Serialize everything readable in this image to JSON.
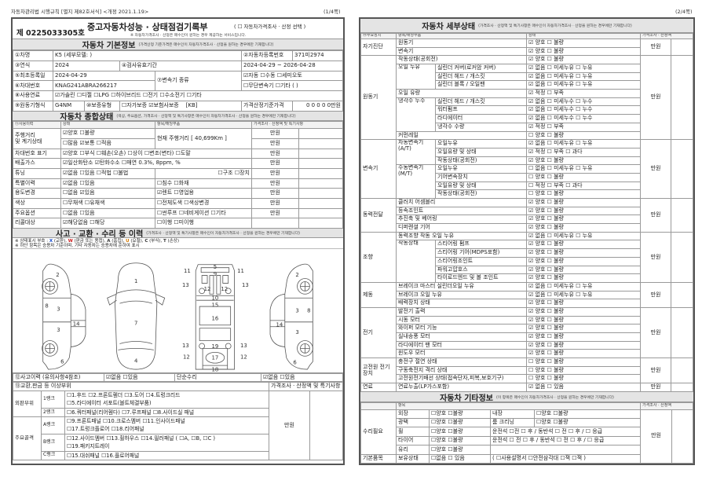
{
  "header": {
    "left": "자동차관리법 시행규칙 [별지 제82호서식] <개정 2021.1.19>",
    "page1": "(1/4쪽)",
    "page2": "(2/4쪽)"
  },
  "p1": {
    "doc_number": "제 0225033305호",
    "title": "중고자동차성능 · 상태점검기록부",
    "title_option": "( ☐ 자동차가격조사 · 산정 선택 )",
    "title_note": "※ 자동차가격조사 · 산정은 매수인이 원하는 경우 제공하는 서비스입니다.",
    "basic": {
      "heading": "자동차 기본정보",
      "note": "(가격산정 기준가격은 매수인이 자동차가격조사 · 산정을 원하는 경우에만 기재합니다)",
      "name_label": "①차명",
      "name": "K5 (세부모델: )",
      "reg_label": "②자동차등록번호",
      "reg": "371미2974",
      "year_label": "③연식",
      "year": "2024",
      "inspect_label": "④검사유효기간",
      "inspect": "2024-04-29 ~ 2026-04-28",
      "first_reg_label": "⑤최초등록일",
      "first_reg": "2024-04-29",
      "trans_label": "⑦변속기 종류",
      "trans1": "☑자동 ☐수동 ☐세미오토",
      "trans2": "☐무단변속기 ☐기타 (      )",
      "vin_label": "⑥차대번호",
      "vin": "KNAG241ABRA266217",
      "fuel_label": "⑧사용연료",
      "fuel": "☑가솔린 ☐디젤 ☐LPG ☐하이브리드 ☐전기 ☐수소전기 ☐기타",
      "engine_label": "⑨원동기형식",
      "engine": "G4NM",
      "warranty_label": "⑩보증유형",
      "warranty": "☐자가보증 ☑보험사보증",
      "warranty_co": "[KB]",
      "base_price_label": "가격산정기준가격",
      "base_price": "0 0 0 0 0만원"
    },
    "overall": {
      "heading": "자동차 종합상태",
      "note": "(색상, 주요옵션, 가격조사 · 산정액 및 특기사항은 매수인이 자동차가격조사 · 산정을 원하는 경우에만 기재합니다)",
      "columns": [
        "⑪사용이력",
        "상태",
        "항목/해당부품",
        "가격조사 · 산정액 및 특기사항"
      ],
      "mileage": {
        "label1": "주행거리",
        "label2": "및 계기상태",
        "status1": "☑양호 ☐불량",
        "status2": "☐많음 ☑보통 ☐적음",
        "parts": "현재 주행거리 [ 40,699Km ]",
        "price1": "만원",
        "price2": "만원"
      },
      "rows": [
        {
          "label": "차대번호 표기",
          "status": "☑양호 ☐부식 ☐훼손(오손) ☐상이 ☐변조(변타) ☐도말",
          "price": "만원"
        },
        {
          "label": "배출가스",
          "status": "☑일산화탄소 ☑탄화수소 ☐매연   0.3%,     8ppm,          %",
          "price": "만원"
        },
        {
          "label": "튜닝",
          "status": "☑없음 ☐있음 ☐적법 ☐불법",
          "parts": "☐구조 ☐장치",
          "price": "만원"
        },
        {
          "label": "특별이력",
          "status": "☑없음 ☐있음",
          "parts": "☐침수 ☐화재",
          "price": "만원"
        },
        {
          "label": "용도변경",
          "status": "☐없음 ☑있음",
          "parts": "☑렌트 ☐영업용",
          "price": "만원"
        },
        {
          "label": "색상",
          "status": "☐무채색 ☐유채색",
          "parts": "☐전체도색 ☐색상변경",
          "price": "만원"
        },
        {
          "label": "주요옵션",
          "status": "☐없음 ☐있음",
          "parts": "☐썬루프 ☐네비게이션 ☐기타",
          "price": "만원"
        },
        {
          "label": "리콜대상",
          "status": "☑해당없음 ☐해당",
          "parts": "☐이행 ☐미이행",
          "price": ""
        }
      ]
    },
    "accident": {
      "heading": "사고 · 교환 · 수리 등 이력",
      "note": "(가격조사 · 산정액 및 특기사항은 매수인이 자동차가격조사 · 산정을 원하는 경우에만 기재합니다)",
      "legend_prefix": "※ 상태표시 부호 : ",
      "legend": [
        {
          "sym": "X",
          "text": "(교환),",
          "color": "#1a4fd0"
        },
        {
          "sym": "W",
          "text": "(판금 또는 용접),",
          "color": "#d01a1a"
        },
        {
          "sym": "A",
          "text": "(흠집),",
          "color": "#333333"
        },
        {
          "sym": "U",
          "text": "(요철),",
          "color": "#d67a00"
        },
        {
          "sym": "C",
          "text": "(부식),",
          "color": "#333333"
        },
        {
          "sym": "T",
          "text": "(손상)",
          "color": "#333333"
        }
      ],
      "note2": "※ 하단 항목은 승용차 기준이며, 기타 자동차는 승용차에 준하여 표시",
      "diagram_labels": [
        "2",
        "8",
        "3",
        "3",
        "14",
        "6",
        "1",
        "7",
        "4",
        "5",
        "9",
        "11",
        "11",
        "13",
        "13",
        "12",
        "12",
        "10",
        "15",
        "16",
        "13",
        "19",
        "13",
        "12",
        "17",
        "12",
        "18",
        "2",
        "3",
        "8",
        "14",
        "3",
        "6"
      ],
      "history_label": "⑫사고이력 (유의사항4참조)",
      "history": "☑없음 ☐있음",
      "simple_label": "단순수리",
      "simple": "☑없음 ☐있음",
      "parts_label": "⑬교환,판금 등 이상부위",
      "price_label": "가격조사 · 산정액 및 특기사항",
      "price": "만원",
      "groups": [
        {
          "name": "외판부위",
          "ranks": [
            {
              "name": "1랭크",
              "lines": [
                "☐1.후드  ☐2.프론트휀더  ☐3.도어  ☐4.트렁크리드",
                "☐5.라디에이터 서포트(볼트체결부품)"
              ]
            },
            {
              "name": "2랭크",
              "lines": [
                "☐6.쿼터패널(리어휀다)  ☐7.루프패널  ☐8.사이드실 패널"
              ]
            }
          ]
        },
        {
          "name": "주요골격",
          "ranks": [
            {
              "name": "A랭크",
              "lines": [
                "☐9.프론트패널  ☐10.크로스멤버  ☐11.인사이드패널",
                "☐17.트렁크플로어  ☐18.리어패널"
              ]
            },
            {
              "name": "B랭크",
              "lines": [
                "☐12.사이드멤버  ☐13.휠하우스  ☐14.필러패널 ( ☐A, ☐B, ☐C )",
                "☐19.패키지트레이"
              ]
            },
            {
              "name": "C랭크",
              "lines": [
                "☐15.대쉬패널  ☐16.플로어패널"
              ]
            }
          ]
        }
      ]
    }
  },
  "p2": {
    "detail": {
      "heading": "자동차 세부상태",
      "note": "(가격조사 · 산정액 및 특기사항은 매수인이 자동차가격조사 · 산정을 원하는 경우에만 기재합니다)",
      "columns": [
        "⑭주요장치",
        "항목/해당부품",
        "상태",
        "가격조사 · 산정액"
      ],
      "price": "만원",
      "groups": [
        {
          "name": "자기진단",
          "items": [
            {
              "name": "원동기",
              "status": "☑ 양호  ☐ 불량"
            },
            {
              "name": "변속기",
              "status": "☑ 양호  ☐ 불량"
            }
          ]
        },
        {
          "name": "원동기",
          "items": [
            {
              "name": "작동상태(공회전)",
              "status": "☑ 양호  ☐ 불량"
            },
            {
              "name": "오일 누유",
              "children": [
                {
                  "name": "실린더 커버(로커암 커버)",
                  "status": "☑ 없음  ☐ 미세누유  ☐ 누유"
                },
                {
                  "name": "실린더 헤드 / 개스킷",
                  "status": "☑ 없음  ☐ 미세누유  ☐ 누유"
                },
                {
                  "name": "실린더 블록 / 오일팬",
                  "status": "☑ 없음  ☐ 미세누유  ☐ 누유"
                }
              ]
            },
            {
              "name": "오일 유량",
              "status": "☑ 적정  ☐ 부족"
            },
            {
              "name": "냉각수 누수",
              "children": [
                {
                  "name": "실린더 헤드 / 개스킷",
                  "status": "☑ 없음  ☐ 미세누수  ☐ 누수"
                },
                {
                  "name": "워터펌프",
                  "status": "☑ 없음  ☐ 미세누수  ☐ 누수"
                },
                {
                  "name": "라디에이터",
                  "status": "☑ 없음  ☐ 미세누수  ☐ 누수"
                },
                {
                  "name": "냉각수 수량",
                  "status": "☑ 적정  ☐ 부족"
                }
              ]
            },
            {
              "name": "커먼레일",
              "status": "☐ 양호  ☐ 불량"
            }
          ]
        },
        {
          "name": "변속기",
          "items": [
            {
              "name": "자동변속기 (A/T)",
              "children": [
                {
                  "name": "오일누유",
                  "status": "☑ 없음  ☐ 미세누유  ☐ 누유"
                },
                {
                  "name": "오일유량 및 상태",
                  "status": "☑ 적정  ☐ 부족  ☐ 과다"
                },
                {
                  "name": "작동상태(공회전)",
                  "status": "☑ 양호  ☐ 불량"
                }
              ]
            },
            {
              "name": "수동변속기 (M/T)",
              "children": [
                {
                  "name": "오일누유",
                  "status": "☐ 없음  ☐ 미세누유  ☐ 누유"
                },
                {
                  "name": "기어변속장치",
                  "status": "☐ 양호  ☐ 불량"
                },
                {
                  "name": "오일유량 및 상태",
                  "status": "☐ 적정  ☐ 부족  ☐ 과다"
                },
                {
                  "name": "작동상태(공회전)",
                  "status": "☐ 양호  ☐ 불량"
                }
              ]
            }
          ]
        },
        {
          "name": "동력전달",
          "items": [
            {
              "name": "클러치 어셈블리",
              "status": "☑ 양호  ☐ 불량"
            },
            {
              "name": "등속조인트",
              "status": "☑ 양호  ☐ 불량"
            },
            {
              "name": "추진축 및 베어링",
              "status": "☑ 양호  ☐ 불량"
            },
            {
              "name": "디퍼렌셜 기어",
              "status": "☑ 양호  ☐ 불량"
            }
          ]
        },
        {
          "name": "조향",
          "items": [
            {
              "name": "동력조향 작동 오일 누유",
              "status": "☑ 없음  ☐ 미세누유  ☐ 누유"
            },
            {
              "name": "작동상태",
              "children": [
                {
                  "name": "스티어링 펌프",
                  "status": "☑ 양호  ☐ 불량"
                },
                {
                  "name": "스티어링 기어(MDPS포함)",
                  "status": "☑ 양호  ☐ 불량"
                },
                {
                  "name": "스티어링조인트",
                  "status": "☑ 양호  ☐ 불량"
                },
                {
                  "name": "파워고압호스",
                  "status": "☑ 양호  ☐ 불량"
                },
                {
                  "name": "타이로드엔드 및 볼 조인트",
                  "status": "☑ 양호  ☐ 불량"
                }
              ]
            }
          ]
        },
        {
          "name": "제동",
          "items": [
            {
              "name": "브레이크 마스터 실린더오일 누유",
              "status": "☑ 없음  ☐ 미세누유  ☐ 누유"
            },
            {
              "name": "브레이크 오일 누유",
              "status": "☑ 없음  ☐ 미세누유  ☐ 누유"
            },
            {
              "name": "배력장치 상태",
              "status": "☑ 양호  ☐ 불량"
            }
          ]
        },
        {
          "name": "전기",
          "items": [
            {
              "name": "발전기 출력",
              "status": "☑ 양호  ☐ 불량"
            },
            {
              "name": "시동 모터",
              "status": "☑ 양호  ☐ 불량"
            },
            {
              "name": "와이퍼 모터 기능",
              "status": "☑ 양호  ☐ 불량"
            },
            {
              "name": "실내송풍 모터",
              "status": "☑ 양호  ☐ 불량"
            },
            {
              "name": "라디에이터 팬 모터",
              "status": "☑ 양호  ☐ 불량"
            },
            {
              "name": "윈도우 모터",
              "status": "☑ 양호  ☐ 불량"
            }
          ]
        },
        {
          "name": "고전원 전기장치",
          "items": [
            {
              "name": "충전구 절연 상태",
              "status": "☐ 양호  ☐ 불량"
            },
            {
              "name": "구동축전지 격리 상태",
              "status": "☐ 양호  ☐ 불량"
            },
            {
              "name": "고전원전기배선 상태(접속단자,피복,보호기구)",
              "status": "☐ 양호  ☐ 불량"
            }
          ]
        },
        {
          "name": "연료",
          "items": [
            {
              "name": "연료누출(LP가스포함)",
              "status": "☑ 없음  ☐ 있음"
            }
          ]
        }
      ]
    },
    "other": {
      "heading": "자동차 기타정보",
      "note": "(이 항목은 매수인이 자동차가격조사 · 산정을 원하는 경우에만 기재합니다)",
      "columns": [
        "항목",
        "가격조사 · 산정액"
      ],
      "price": "만원",
      "groups": [
        {
          "name": "수리필요",
          "rows": [
            {
              "item": "외장",
              "status": "☐양호  ☐불량",
              "extra_label": "내장",
              "extra": "☐양호  ☐불량"
            },
            {
              "item": "광택",
              "status": "☐양호  ☐불량",
              "extra_label": "룸 크리닝",
              "extra": "☐양호  ☐불량"
            },
            {
              "item": "휠",
              "status": "☐양호  ☐불량",
              "extra": "운전석 ☐전 ☐ 후 / 동반석 ☐ 전 ☐ 후 / ☐ 응급"
            },
            {
              "item": "타이어",
              "status": "☐양호  ☐불량",
              "extra": "운전석 ☐ 전 ☐ 후 / 동반석 ☐ 전 ☐ 후 / ☐ 응급"
            },
            {
              "item": "유리",
              "status": "☐양호  ☐불량",
              "extra": ""
            }
          ]
        },
        {
          "name": "기본품목",
          "rows": [
            {
              "item": "보유상태",
              "status": "☐없음  ☐ 있음",
              "extra": "( ☐사용설명서 ☐안전삼각대 ☐잭 ☐잭 )"
            }
          ]
        }
      ]
    }
  }
}
